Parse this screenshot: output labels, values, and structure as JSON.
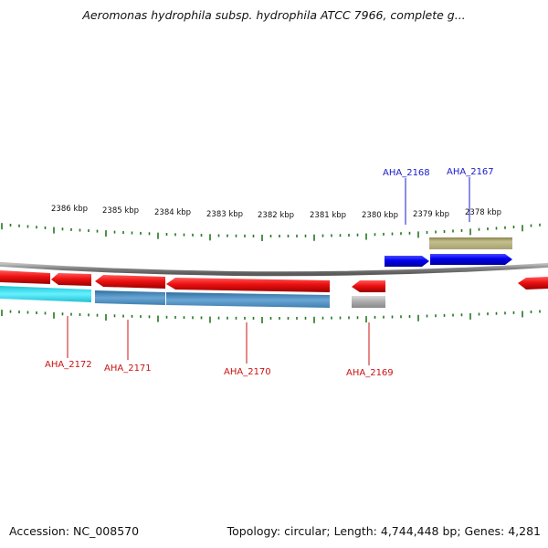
{
  "title": "Aeromonas hydrophila subsp. hydrophila ATCC 7966, complete g...",
  "accession": "Accession: NC_008570",
  "summary": "Topology: circular; Length: 4,744,448 bp; Genes: 4,281",
  "ruler": [
    "2386 kbp",
    "2385 kbp",
    "2384 kbp",
    "2383 kbp",
    "2382 kbp",
    "2381 kbp",
    "2380 kbp",
    "2379 kbp",
    "2378 kbp"
  ],
  "genes": {
    "forward": [
      {
        "id": "AHA_2168",
        "strand": "+",
        "color": "#0000ee"
      },
      {
        "id": "AHA_2167",
        "strand": "+",
        "color": "#0000ee"
      }
    ],
    "reverse": [
      {
        "id": "AHA_2172",
        "strand": "-",
        "color": "#dd1111"
      },
      {
        "id": "AHA_2171",
        "strand": "-",
        "color": "#dd1111"
      },
      {
        "id": "AHA_2170",
        "strand": "-",
        "color": "#dd1111"
      },
      {
        "id": "AHA_2169",
        "strand": "-",
        "color": "#dd1111"
      }
    ]
  },
  "colors": {
    "forward_gene": "#0000ee",
    "reverse_gene": "#dd1111",
    "forward_label": "#1a1acc",
    "reverse_label": "#cc1111",
    "tick": "#227722",
    "backbone": "#8a8a8a",
    "cds_olive": "#b8b280",
    "cds_cyan": "#33ddee",
    "cds_steel": "#4b8fc2",
    "cds_gray": "#b8b8b8"
  }
}
